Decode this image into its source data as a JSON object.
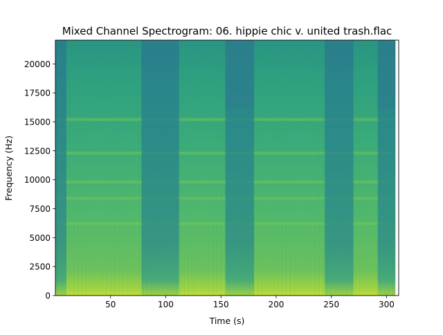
{
  "chart_data": {
    "type": "heatmap",
    "title": "Mixed Channel Spectrogram: 06. hippie chic v. united trash.flac",
    "xlabel": "Time (s)",
    "ylabel": "Frequency (Hz)",
    "xlim": [
      0,
      311
    ],
    "ylim": [
      0,
      22050
    ],
    "xticks": [
      50,
      100,
      150,
      200,
      250,
      300
    ],
    "yticks": [
      0,
      2500,
      5000,
      7500,
      10000,
      12500,
      15000,
      17500,
      20000
    ],
    "duration_end": 308,
    "colormap": "viridis",
    "colors": {
      "low": "#2a8a8a",
      "mid": "#2fb07e",
      "high": "#c8dd3b"
    },
    "dark_segments_s": [
      {
        "start": 0,
        "end": 10
      },
      {
        "start": 78,
        "end": 112
      },
      {
        "start": 154,
        "end": 180
      },
      {
        "start": 244,
        "end": 270
      },
      {
        "start": 292,
        "end": 308
      }
    ],
    "cutoff_hz": [
      {
        "start": 0,
        "end": 10,
        "hz": 22050
      },
      {
        "start": 78,
        "end": 112,
        "hz": 19800
      },
      {
        "start": 154,
        "end": 180,
        "hz": 16200
      },
      {
        "start": 244,
        "end": 270,
        "hz": 19800
      },
      {
        "start": 292,
        "end": 308,
        "hz": 16200
      }
    ],
    "bright_bands_hz": [
      15200,
      12300,
      9800,
      8400,
      6200
    ]
  }
}
